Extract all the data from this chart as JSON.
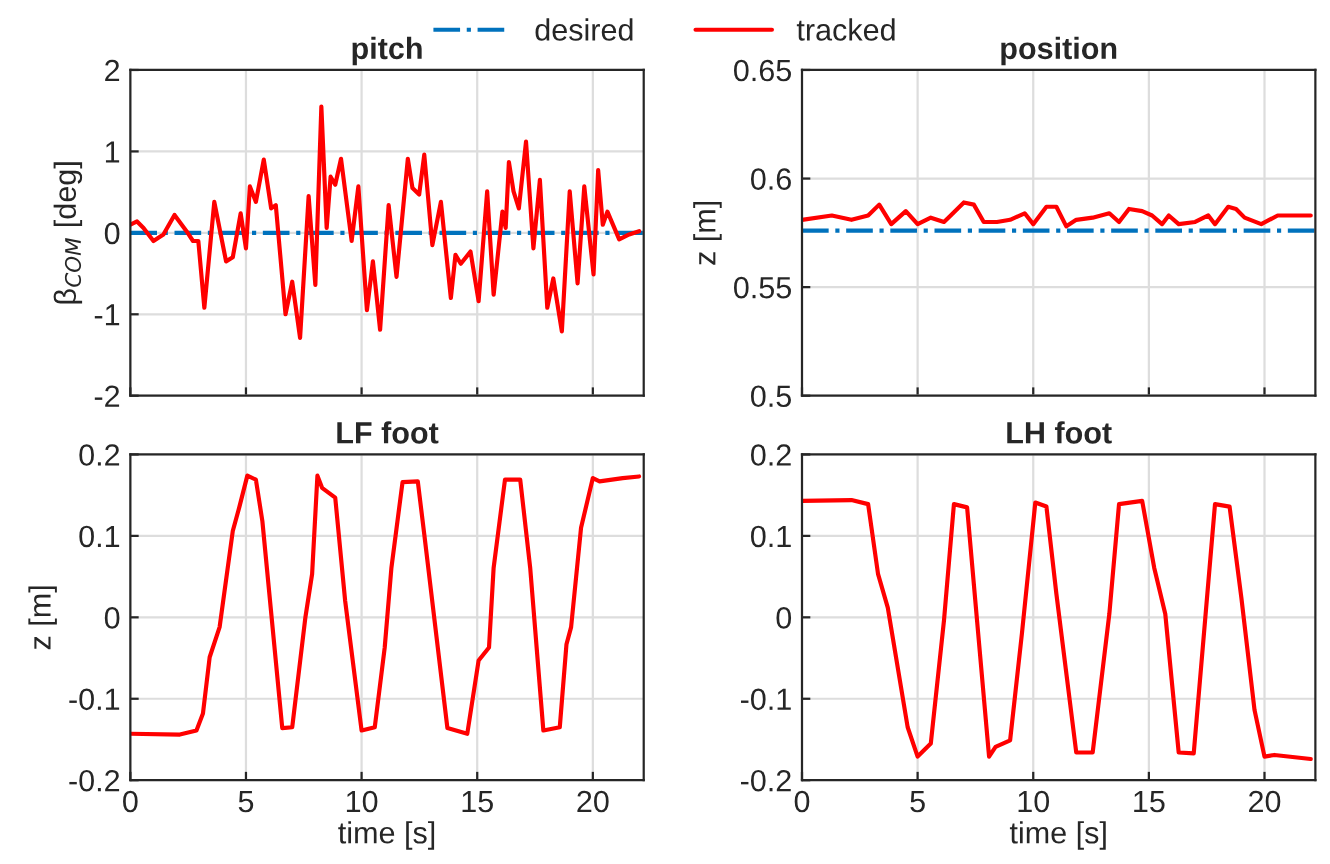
{
  "chart_data": [
    {
      "type": "line",
      "title": "pitch",
      "ylabel": "β$_{COM}$ [deg]",
      "xlim": [
        0,
        22.2
      ],
      "xticks": [
        0,
        5,
        10,
        15,
        20
      ],
      "ylim": [
        -2,
        2
      ],
      "yticks": [
        -2,
        -1,
        0,
        1,
        2
      ],
      "grid": true,
      "tick_labels": "y",
      "legend": "top",
      "series": [
        {
          "name": "desired",
          "color": "#0072bd",
          "line_style": "dashdot",
          "x": [
            0,
            22.2
          ],
          "values": [
            0,
            0
          ]
        },
        {
          "name": "tracked",
          "color": "#ff0000",
          "line_style": "solid",
          "x": [
            0,
            0.29,
            0.57,
            1.0,
            1.43,
            1.91,
            2.43,
            2.71,
            2.94,
            3.2,
            3.63,
            4.14,
            4.43,
            4.77,
            5.0,
            5.17,
            5.43,
            5.77,
            6.09,
            6.29,
            6.71,
            7.0,
            7.34,
            7.71,
            8.0,
            8.26,
            8.49,
            8.66,
            8.86,
            9.11,
            9.57,
            9.86,
            10.23,
            10.49,
            10.8,
            11.17,
            11.51,
            12.0,
            12.2,
            12.49,
            12.71,
            13.06,
            13.43,
            13.86,
            14.06,
            14.29,
            14.71,
            15.06,
            15.43,
            15.71,
            16.09,
            16.23,
            16.37,
            16.57,
            16.8,
            17.11,
            17.43,
            17.71,
            18.03,
            18.29,
            18.66,
            19.0,
            19.34,
            19.63,
            20.03,
            20.23,
            20.43,
            20.63,
            21.14,
            21.57,
            22.0
          ],
          "values": [
            0.1,
            0.14,
            0.06,
            -0.1,
            -0.02,
            0.22,
            0.02,
            -0.1,
            -0.1,
            -0.92,
            0.38,
            -0.35,
            -0.3,
            0.24,
            -0.19,
            0.57,
            0.38,
            0.9,
            0.3,
            0.34,
            -1.0,
            -0.6,
            -1.29,
            0.45,
            -0.64,
            1.55,
            0.06,
            0.69,
            0.59,
            0.91,
            -0.1,
            0.57,
            -0.95,
            -0.35,
            -1.19,
            0.34,
            -0.54,
            0.91,
            0.55,
            0.47,
            0.96,
            -0.15,
            0.38,
            -0.8,
            -0.27,
            -0.38,
            -0.23,
            -0.84,
            0.51,
            -0.76,
            0.26,
            0.06,
            0.87,
            0.51,
            0.3,
            1.12,
            -0.19,
            0.65,
            -0.92,
            -0.56,
            -1.21,
            0.51,
            -0.62,
            0.57,
            -0.51,
            0.77,
            0.1,
            0.26,
            -0.08,
            -0.02,
            0.02
          ]
        }
      ]
    },
    {
      "type": "line",
      "title": "position",
      "ylabel": "z [m]",
      "xlim": [
        0,
        22.2
      ],
      "xticks": [
        0,
        5,
        10,
        15,
        20
      ],
      "ylim": [
        0.5,
        0.65
      ],
      "yticks": [
        0.5,
        0.55,
        0.6,
        0.65
      ],
      "grid": true,
      "tick_labels": "y",
      "series": [
        {
          "color": "#0072bd",
          "line_style": "dashdot",
          "x": [
            0,
            22.2
          ],
          "values": [
            0.576,
            0.576
          ]
        },
        {
          "color": "#ff0000",
          "line_style": "solid",
          "x": [
            0,
            1.29,
            2.14,
            2.86,
            3.34,
            3.86,
            4.49,
            5.0,
            5.57,
            6.14,
            6.43,
            7.0,
            7.43,
            7.86,
            8.43,
            9.0,
            9.63,
            10.0,
            10.57,
            11.0,
            11.43,
            11.86,
            12.57,
            13.29,
            13.71,
            14.14,
            14.71,
            15.14,
            15.57,
            15.86,
            16.29,
            17.0,
            17.57,
            17.86,
            18.43,
            18.77,
            19.14,
            19.86,
            20.57,
            21.29,
            22.0
          ],
          "values": [
            0.581,
            0.583,
            0.581,
            0.583,
            0.588,
            0.579,
            0.585,
            0.579,
            0.582,
            0.58,
            0.583,
            0.589,
            0.588,
            0.58,
            0.58,
            0.581,
            0.584,
            0.579,
            0.587,
            0.587,
            0.578,
            0.581,
            0.582,
            0.584,
            0.58,
            0.586,
            0.585,
            0.583,
            0.579,
            0.583,
            0.579,
            0.58,
            0.583,
            0.579,
            0.587,
            0.586,
            0.582,
            0.579,
            0.583,
            0.583,
            0.583
          ]
        }
      ]
    },
    {
      "type": "line",
      "title": "LF foot",
      "xlabel": "time [s]",
      "ylabel": "z [m]",
      "xlim": [
        0,
        22.2
      ],
      "xticks": [
        0,
        5,
        10,
        15,
        20
      ],
      "ylim": [
        -0.2,
        0.2
      ],
      "yticks": [
        -0.2,
        -0.1,
        0,
        0.1,
        0.2
      ],
      "grid": true,
      "series": [
        {
          "color": "#ff0000",
          "line_style": "solid",
          "x": [
            0,
            2.14,
            2.86,
            3.14,
            3.43,
            3.86,
            4.43,
            4.71,
            5.06,
            5.43,
            5.71,
            6.57,
            7.0,
            7.57,
            7.86,
            8.09,
            8.29,
            8.86,
            9.29,
            10.0,
            10.57,
            11.0,
            11.29,
            11.77,
            12.43,
            12.71,
            13.71,
            14.57,
            15.06,
            15.51,
            15.71,
            16.2,
            16.86,
            17.29,
            17.86,
            18.57,
            18.86,
            19.06,
            19.49,
            20.0,
            20.29,
            21.29,
            22.0
          ],
          "values": [
            -0.143,
            -0.144,
            -0.139,
            -0.118,
            -0.049,
            -0.012,
            0.106,
            0.135,
            0.174,
            0.169,
            0.118,
            -0.136,
            -0.135,
            0.0,
            0.053,
            0.174,
            0.159,
            0.147,
            0.02,
            -0.139,
            -0.135,
            -0.037,
            0.061,
            0.166,
            0.167,
            0.102,
            -0.136,
            -0.143,
            -0.053,
            -0.037,
            0.061,
            0.169,
            0.169,
            0.061,
            -0.139,
            -0.135,
            -0.033,
            -0.012,
            0.11,
            0.171,
            0.167,
            0.171,
            0.173
          ]
        }
      ]
    },
    {
      "type": "line",
      "title": "LH foot",
      "xlabel": "time [s]",
      "xlim": [
        0,
        22.2
      ],
      "xticks": [
        0,
        5,
        10,
        15,
        20
      ],
      "ylim": [
        -0.2,
        0.2
      ],
      "yticks": [
        -0.2,
        -0.1,
        0,
        0.1,
        0.2
      ],
      "grid": true,
      "series": [
        {
          "color": "#ff0000",
          "line_style": "solid",
          "x": [
            0,
            2.14,
            2.86,
            3.29,
            3.71,
            4.57,
            5.0,
            5.57,
            6.14,
            6.57,
            7.14,
            7.57,
            8.09,
            8.37,
            9.0,
            9.51,
            10.09,
            10.57,
            11.0,
            11.86,
            12.57,
            13.29,
            13.71,
            14.71,
            15.23,
            15.71,
            16.29,
            16.94,
            17.43,
            17.86,
            18.49,
            19.0,
            19.57,
            20.0,
            20.43,
            22.0
          ],
          "values": [
            0.143,
            0.144,
            0.139,
            0.053,
            0.012,
            -0.135,
            -0.171,
            -0.155,
            -0.004,
            0.139,
            0.135,
            -0.004,
            -0.171,
            -0.159,
            -0.151,
            -0.02,
            0.141,
            0.136,
            0.029,
            -0.166,
            -0.166,
            0.004,
            0.139,
            0.143,
            0.061,
            0.004,
            -0.166,
            -0.167,
            -0.004,
            0.139,
            0.136,
            0.024,
            -0.114,
            -0.171,
            -0.169,
            -0.174
          ]
        }
      ]
    }
  ]
}
